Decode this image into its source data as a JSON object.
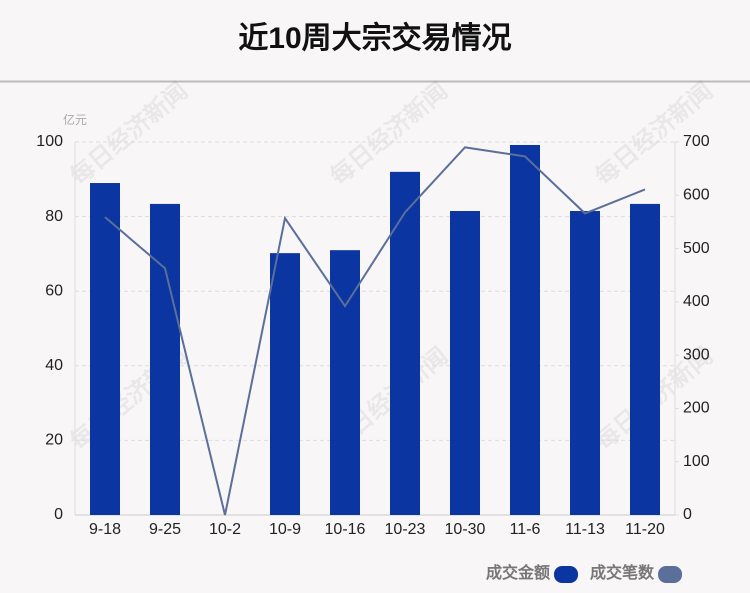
{
  "chart_data": {
    "type": "bar_line",
    "title": "近10周大宗交易情况",
    "y_unit": "亿元",
    "watermark": "每日经济新闻",
    "categories": [
      "9-18",
      "9-25",
      "10-2",
      "10-9",
      "10-16",
      "10-23",
      "10-30",
      "11-6",
      "11-13",
      "11-20"
    ],
    "series": [
      {
        "name": "成交金额",
        "type": "bar",
        "color": "#0b35a0",
        "values": [
          89.0,
          83.4,
          0,
          70.2,
          71.0,
          92.0,
          81.5,
          99.2,
          81.5,
          83.4
        ]
      },
      {
        "name": "成交笔数",
        "type": "line",
        "axis": "y2",
        "color": "#5a6f9a",
        "values": [
          559,
          463,
          0,
          557,
          392,
          568,
          690,
          673,
          566,
          611
        ]
      }
    ],
    "ylim": [
      0,
      100
    ],
    "yticks": [
      0,
      20,
      40,
      60,
      80,
      100
    ],
    "y2lim": [
      0,
      700
    ],
    "y2ticks": [
      0,
      100,
      200,
      300,
      400,
      500,
      600,
      700
    ],
    "grid": true,
    "legend": "bottom-right"
  }
}
